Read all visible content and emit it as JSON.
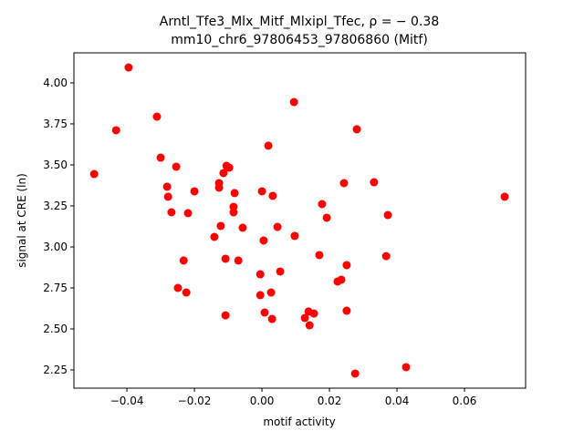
{
  "chart_data": {
    "type": "scatter",
    "title": "Arntl_Tfe3_Mlx_Mitf_Mlxipl_Tfec, ρ = − 0.38",
    "subtitle": "mm10_chr6_97806453_97806860 (Mitf)",
    "x_label": "motif activity",
    "y_label": "signal at CRE (ln)",
    "color": "#ff0000",
    "xlim": [
      -0.0557,
      0.0781
    ],
    "ylim": [
      2.139,
      4.183
    ],
    "xticks": [
      {
        "value": -0.04,
        "label": "−0.04"
      },
      {
        "value": -0.02,
        "label": "−0.02"
      },
      {
        "value": 0,
        "label": "0.00"
      },
      {
        "value": 0.02,
        "label": "0.02"
      },
      {
        "value": 0.04,
        "label": "0.04"
      },
      {
        "value": 0.06,
        "label": "0.06"
      }
    ],
    "yticks": [
      {
        "value": 2.25,
        "label": "2.25"
      },
      {
        "value": 2.5,
        "label": "2.50"
      },
      {
        "value": 2.75,
        "label": "2.75"
      },
      {
        "value": 3,
        "label": "3.00"
      },
      {
        "value": 3.25,
        "label": "3.25"
      },
      {
        "value": 3.5,
        "label": "3.50"
      },
      {
        "value": 3.75,
        "label": "3.75"
      },
      {
        "value": 4,
        "label": "4.00"
      }
    ],
    "x": [
      -0.0395,
      -0.0497,
      -0.0432,
      -0.0311,
      -0.03,
      -0.0254,
      -0.0281,
      -0.0278,
      -0.0268,
      -0.0219,
      -0.02,
      -0.0232,
      -0.0249,
      -0.0224,
      -0.0127,
      -0.0127,
      -0.0114,
      -0.0105,
      -0.0097,
      -0.0122,
      -0.0141,
      -0.0081,
      -0.0084,
      -0.0084,
      -0.0057,
      -0.0108,
      -0.007,
      -0.0108,
      0.0,
      0.0019,
      0.0032,
      0.0005,
      0.0046,
      -0.0005,
      0.0054,
      -0.0005,
      0.0027,
      0.0008,
      0.003,
      0.0095,
      0.0097,
      0.0178,
      0.0192,
      0.017,
      0.0127,
      0.0138,
      0.0154,
      0.0141,
      0.0243,
      0.0281,
      0.0332,
      0.0373,
      0.0368,
      0.0251,
      0.0235,
      0.0224,
      0.0251,
      0.0276,
      0.0427,
      0.0719
    ],
    "values": [
      4.094,
      3.444,
      3.711,
      3.794,
      3.544,
      3.489,
      3.367,
      3.306,
      3.211,
      3.206,
      3.339,
      2.917,
      2.75,
      2.722,
      3.389,
      3.361,
      3.45,
      3.494,
      3.483,
      3.128,
      3.061,
      3.328,
      3.244,
      3.211,
      3.117,
      2.928,
      2.917,
      2.583,
      3.339,
      3.617,
      3.311,
      3.039,
      3.122,
      2.833,
      2.85,
      2.706,
      2.722,
      2.6,
      2.561,
      3.883,
      3.067,
      3.261,
      3.178,
      2.95,
      2.567,
      2.606,
      2.594,
      2.522,
      3.389,
      3.717,
      3.394,
      3.194,
      2.944,
      2.889,
      2.8,
      2.789,
      2.611,
      2.228,
      2.267,
      3.306
    ]
  }
}
